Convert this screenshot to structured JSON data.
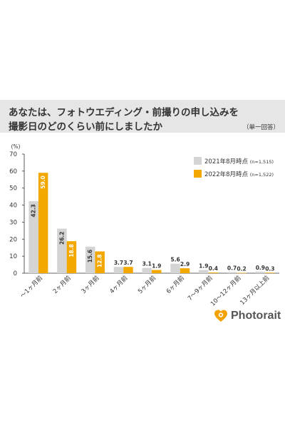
{
  "header": {
    "title": "あなたは、フォトウエディング・前撮りの申し込みを\n撮影日のどのくらい前にしましたか",
    "unit_note": "（単一回答）"
  },
  "brand": {
    "name": "Photorait",
    "logo_color": "#f3a200"
  },
  "chart_data": {
    "type": "bar",
    "yunit": "(%)",
    "ylim": [
      0,
      70
    ],
    "yticks": [
      0,
      10,
      20,
      30,
      40,
      50,
      60,
      70
    ],
    "grid": false,
    "legend_position": "top-right",
    "categories": [
      "〜1ヶ月前",
      "2ヶ月前",
      "3ヶ月前",
      "4ヶ月前",
      "5ヶ月前",
      "6ヶ月前",
      "7〜9ヶ月前",
      "10〜12ヶ月前",
      "13ヶ月以上前"
    ],
    "series": [
      {
        "name": "2021年8月時点",
        "n_label": "(n=1,515)",
        "color": "#d4d4d4",
        "values": [
          42.3,
          26.2,
          15.6,
          3.7,
          3.1,
          5.6,
          1.9,
          0.7,
          0.9
        ]
      },
      {
        "name": "2022年8月時点",
        "n_label": "(n=1,522)",
        "color": "#f3a800",
        "values": [
          59.0,
          18.8,
          12.8,
          3.7,
          1.9,
          2.9,
          0.4,
          0.2,
          0.3
        ]
      }
    ]
  }
}
